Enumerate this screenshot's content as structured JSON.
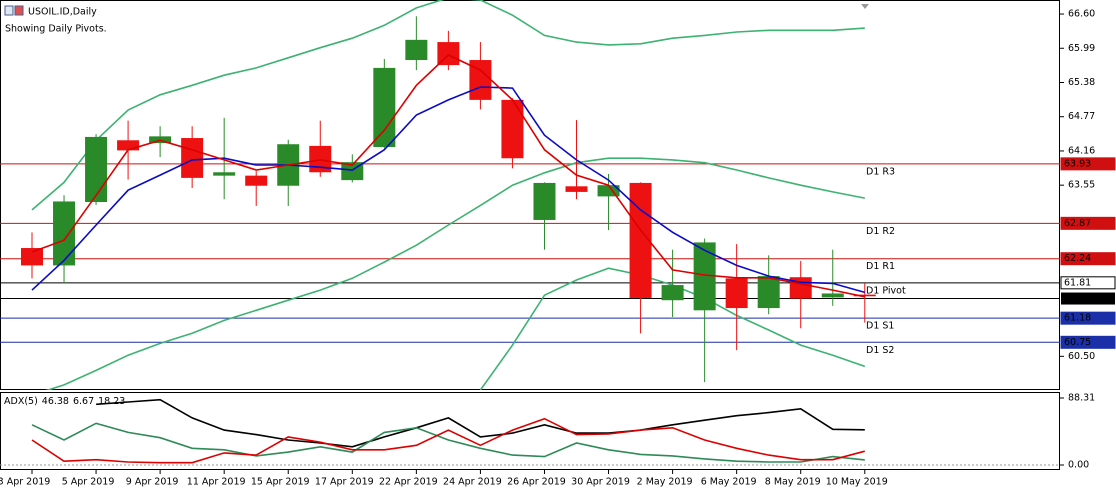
{
  "chart_data": {
    "type": "candlestick",
    "title": "USOIL.ID,Daily",
    "subtitle": "Showing Daily Pivots.",
    "categories": [
      "3 Apr 2019",
      null,
      "5 Apr 2019",
      null,
      "9 Apr 2019",
      null,
      "11 Apr 2019",
      null,
      "15 Apr 2019",
      null,
      "17 Apr 2019",
      null,
      "22 Apr 2019",
      null,
      "24 Apr 2019",
      null,
      "26 Apr 2019",
      null,
      "30 Apr 2019",
      null,
      "2 May 2019",
      null,
      "6 May 2019",
      null,
      "8 May 2019",
      null,
      "10 May 2019"
    ],
    "open": [
      62.43,
      62.12,
      63.25,
      64.35,
      64.3,
      64.39,
      63.72,
      63.72,
      63.54,
      64.25,
      63.64,
      64.23,
      65.78,
      66.1,
      65.78,
      65.07,
      62.93,
      63.53,
      63.35,
      63.59,
      61.5,
      61.32,
      61.89,
      61.36,
      61.91,
      61.55,
      61.6
    ],
    "high": [
      62.71,
      63.37,
      64.46,
      64.7,
      64.6,
      64.6,
      64.75,
      63.8,
      64.36,
      64.7,
      64.1,
      65.8,
      66.56,
      66.3,
      66.1,
      65.1,
      63.6,
      64.71,
      63.75,
      63.6,
      62.4,
      62.6,
      62.5,
      62.3,
      62.2,
      62.4,
      61.8
    ],
    "low": [
      61.89,
      61.8,
      63.2,
      63.65,
      64.05,
      63.5,
      63.3,
      63.18,
      63.18,
      63.7,
      63.6,
      64.2,
      65.6,
      65.6,
      64.9,
      63.85,
      62.4,
      63.3,
      62.75,
      60.91,
      61.2,
      60.04,
      60.61,
      61.25,
      61.0,
      61.4,
      61.1
    ],
    "close": [
      62.12,
      63.26,
      64.41,
      64.17,
      64.42,
      63.68,
      63.78,
      63.54,
      64.28,
      63.78,
      63.96,
      65.64,
      66.14,
      65.69,
      65.07,
      64.03,
      63.59,
      63.43,
      63.55,
      61.54,
      61.77,
      62.53,
      61.36,
      61.93,
      61.53,
      61.62,
      61.57
    ],
    "up_color": "#2a8a2a",
    "down_color": "#ee1111",
    "overlays": [
      {
        "color": "#3cb371",
        "values": [
          63.11,
          63.6,
          64.35,
          64.89,
          65.16,
          65.33,
          65.51,
          65.64,
          65.82,
          66.0,
          66.17,
          66.4,
          66.71,
          66.89,
          66.85,
          66.58,
          66.22,
          66.1,
          66.05,
          66.07,
          66.17,
          66.22,
          66.28,
          66.31,
          66.31,
          66.31,
          66.35
        ]
      },
      {
        "color": "#3cb371",
        "values": [
          59.81,
          59.99,
          60.25,
          60.52,
          60.73,
          60.91,
          61.14,
          61.32,
          61.5,
          61.68,
          61.89,
          62.18,
          62.48,
          62.84,
          63.19,
          63.55,
          63.77,
          63.95,
          64.03,
          64.03,
          64.0,
          63.95,
          63.82,
          63.68,
          63.55,
          63.43,
          63.32
        ]
      },
      {
        "color": "#3cb371",
        "values": [
          null,
          null,
          null,
          null,
          null,
          null,
          null,
          null,
          null,
          null,
          null,
          null,
          null,
          null,
          59.9,
          60.7,
          61.59,
          61.86,
          62.07,
          61.95,
          61.77,
          61.54,
          61.23,
          60.97,
          60.7,
          60.52,
          60.32
        ]
      },
      {
        "color": "#0a0ac8",
        "values": [
          61.68,
          62.21,
          62.84,
          63.46,
          63.73,
          64.0,
          64.03,
          63.91,
          63.91,
          63.87,
          63.82,
          64.18,
          64.8,
          65.07,
          65.3,
          65.28,
          64.44,
          64.0,
          63.64,
          63.11,
          62.71,
          62.39,
          62.12,
          61.93,
          61.82,
          61.8,
          61.64
        ]
      },
      {
        "color": "#dd0000",
        "values": [
          62.36,
          62.57,
          63.37,
          64.18,
          64.35,
          64.18,
          64.0,
          63.82,
          63.91,
          64.0,
          63.91,
          64.53,
          65.33,
          65.87,
          65.6,
          65.07,
          64.18,
          63.73,
          63.55,
          62.75,
          62.04,
          61.95,
          61.9,
          61.9,
          61.79,
          61.68,
          61.56
        ]
      }
    ],
    "ylim": [
      59.9,
      66.85
    ],
    "yticks": [
      {
        "value": 66.6,
        "label": "66.60"
      },
      65.99,
      65.38,
      64.77,
      64.16,
      63.55,
      {
        "value": 60.5,
        "label": "60.50"
      }
    ],
    "pivots": [
      {
        "label": "D1 R3",
        "value": 63.93,
        "color": "#d01010"
      },
      {
        "label": "D1 R2",
        "value": 62.87,
        "color": "#d01010"
      },
      {
        "label": "D1 R1",
        "value": 62.24,
        "color": "#d01010"
      },
      {
        "label": "D1 Pivot",
        "value": 61.81,
        "color": "#000000"
      },
      {
        "label": "D1 S1",
        "value": 61.18,
        "color": "#1a2fa8"
      },
      {
        "label": "D1 S2",
        "value": 60.75,
        "color": "#1a2fa8"
      }
    ],
    "current_price": 61.53,
    "indicator": {
      "name": "ADX(5)",
      "ylim": [
        -6.6,
        96.2
      ],
      "yticks": [
        88.31,
        {
          "value": 0,
          "label": "0.00"
        }
      ],
      "series": [
        {
          "color": "#000000",
          "values": [
            null,
            null,
            80,
            83,
            86,
            62,
            46,
            40,
            33,
            29,
            24,
            37,
            49,
            62,
            37,
            42,
            53,
            42,
            42,
            46,
            53,
            59,
            65,
            69,
            74,
            47,
            46.38
          ]
        },
        {
          "color": "#2e8b57",
          "values": [
            53,
            33,
            55,
            43,
            36,
            22,
            20,
            12,
            17,
            24,
            17,
            43,
            49,
            33,
            22,
            13,
            11,
            29,
            20,
            14,
            12,
            8,
            5,
            4,
            4,
            11,
            6.67
          ]
        },
        {
          "color": "#dd0000",
          "values": [
            33,
            5,
            7,
            4,
            3,
            3,
            16,
            13,
            37,
            30,
            20,
            20,
            26,
            46,
            26,
            46,
            61,
            40,
            41,
            46,
            49,
            33,
            22,
            13,
            7,
            7,
            18.23
          ]
        }
      ]
    }
  }
}
